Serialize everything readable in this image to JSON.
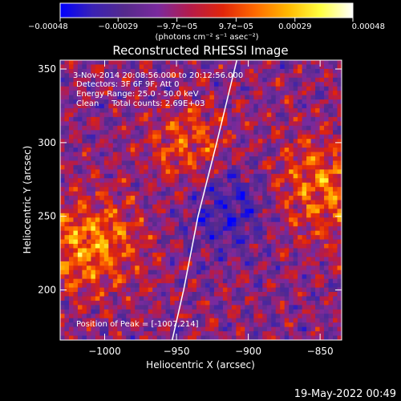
{
  "chart_data": {
    "type": "heatmap",
    "title": "Reconstructed RHESSI Image",
    "xlabel": "Heliocentric X (arcsec)",
    "ylabel": "Heliocentric Y (arcsec)",
    "xlim": [
      -1031,
      -835
    ],
    "ylim": [
      166,
      356
    ],
    "x_ticks": [
      {
        "value": -1000,
        "label": "−1000"
      },
      {
        "value": -950,
        "label": "−950"
      },
      {
        "value": -900,
        "label": "−900"
      },
      {
        "value": -850,
        "label": "−850"
      }
    ],
    "y_ticks": [
      {
        "value": 200,
        "label": "200"
      },
      {
        "value": 250,
        "label": "250"
      },
      {
        "value": 300,
        "label": "300"
      },
      {
        "value": 350,
        "label": "350"
      }
    ],
    "colorbar": {
      "range": [
        -0.00048,
        0.00048
      ],
      "ticks": [
        {
          "value": -0.00048,
          "label": "−0.00048"
        },
        {
          "value": -0.00029,
          "label": "−0.00029"
        },
        {
          "value": -9.7e-05,
          "label": "−9.7e−05"
        },
        {
          "value": 9.7e-05,
          "label": "9.7e−05"
        },
        {
          "value": 0.00029,
          "label": "0.00029"
        },
        {
          "value": 0.00048,
          "label": "0.00048"
        }
      ],
      "units_label": "(photons cm⁻² s⁻¹ asec⁻²)"
    },
    "annotations": [
      "3-Nov-2014 20:08:56.000 to 20:12:56.000",
      "Detectors: 3F 6F 9F, Att 0",
      "Energy Range: 25.0 - 50.0 keV",
      "Clean     Total counts: 2.69E+03"
    ],
    "peak_label": "Position of Peak = [-1007,214]",
    "limb_curve": [
      [
        -953,
        166
      ],
      [
        -945,
        200
      ],
      [
        -935,
        250
      ],
      [
        -922,
        300
      ],
      [
        -908,
        356
      ]
    ]
  },
  "timestamp": "19-May-2022 00:49",
  "colors": {
    "background": "#000000",
    "foreground": "#ffffff",
    "colormap": [
      "#0000ff",
      "#3a22b4",
      "#562a8c",
      "#7a2a9e",
      "#b51b4a",
      "#e0250a",
      "#ff6a00",
      "#ffb800",
      "#ffff40",
      "#ffffff"
    ]
  }
}
